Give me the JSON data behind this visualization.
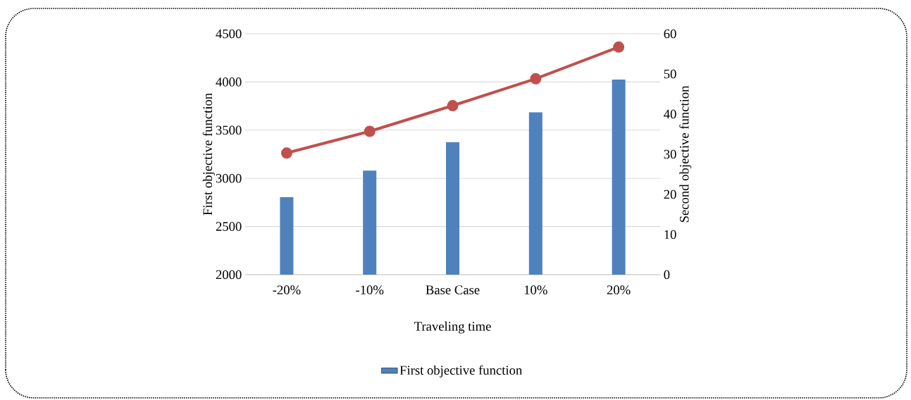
{
  "chart_data": {
    "type": "bar",
    "xlabel": "Traveling time",
    "ylabel": "First objective function",
    "y2label": "Second objective function",
    "categories": [
      "-20%",
      "-10%",
      "Base Case",
      "10%",
      "20%"
    ],
    "series": [
      {
        "name": "First objective function",
        "color": "#4f81bd",
        "values": [
          2805,
          3080,
          3375,
          3685,
          4025
        ]
      },
      {
        "type": "line",
        "axis": "y2",
        "color": "#c0504d",
        "marker": "circle",
        "values": [
          30.3,
          35.7,
          42.1,
          48.8,
          56.7
        ]
      }
    ],
    "ylim": [
      2000,
      4500
    ],
    "yticks": [
      2000,
      2500,
      3000,
      3500,
      4000,
      4500
    ],
    "y2lim": [
      0,
      60
    ],
    "y2ticks": [
      0,
      10,
      20,
      30,
      40,
      50,
      60
    ],
    "grid": "y",
    "legend": "bottom"
  }
}
